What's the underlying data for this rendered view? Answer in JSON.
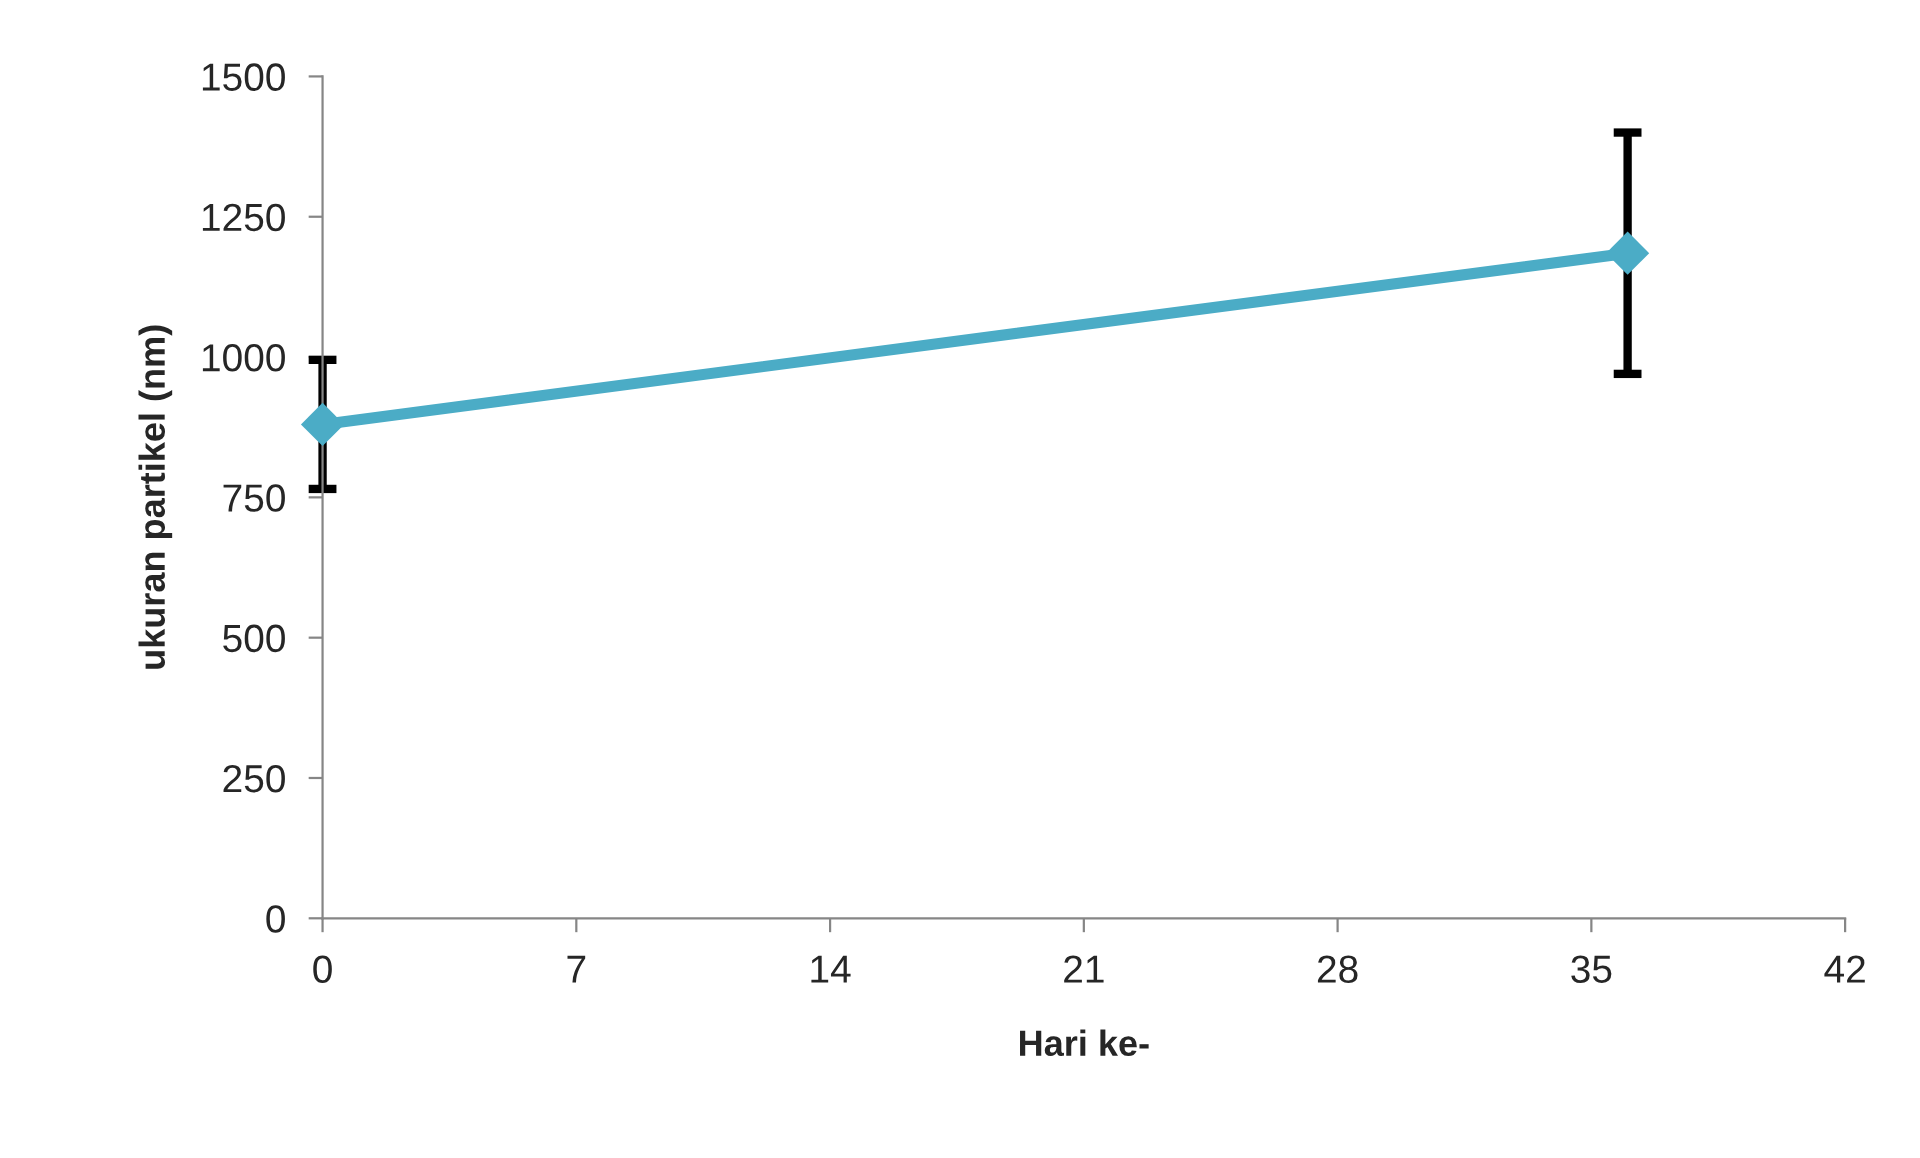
{
  "chart_data": {
    "type": "line",
    "xlabel": "Hari ke-",
    "ylabel": "ukuran partikel (nm)",
    "x": [
      0,
      36
    ],
    "series": [
      {
        "color": "#4bacc6",
        "values": [
          880,
          1185
        ],
        "errors": [
          115,
          215
        ]
      }
    ],
    "xlim": [
      0,
      42
    ],
    "xticks": [
      0,
      7,
      14,
      21,
      28,
      35,
      42
    ],
    "ylim": [
      0,
      1500
    ],
    "yticks": [
      0,
      250,
      500,
      750,
      1000,
      1250,
      1500
    ],
    "marker": "diamond",
    "line_style": "solid",
    "grid": false
  }
}
